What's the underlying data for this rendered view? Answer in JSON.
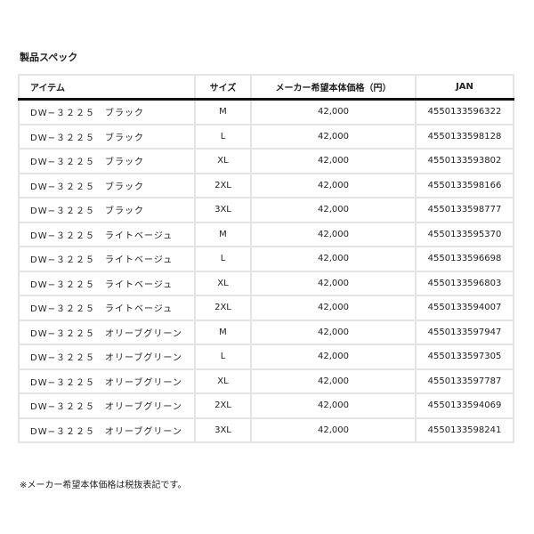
{
  "title": "製品スペック",
  "headers": {
    "item": "アイテム",
    "size": "サイズ",
    "price": "メーカー希望本体価格（円）",
    "jan": "JAN"
  },
  "rows": [
    {
      "item": "DW−３２２５　ブラック",
      "size": "M",
      "price": "42,000",
      "jan": "4550133596322"
    },
    {
      "item": "DW−３２２５　ブラック",
      "size": "L",
      "price": "42,000",
      "jan": "4550133598128"
    },
    {
      "item": "DW−３２２５　ブラック",
      "size": "XL",
      "price": "42,000",
      "jan": "4550133593802"
    },
    {
      "item": "DW−３２２５　ブラック",
      "size": "2XL",
      "price": "42,000",
      "jan": "4550133598166"
    },
    {
      "item": "DW−３２２５　ブラック",
      "size": "3XL",
      "price": "42,000",
      "jan": "4550133598777"
    },
    {
      "item": "DW−３２２５　ライトベージュ",
      "size": "M",
      "price": "42,000",
      "jan": "4550133595370"
    },
    {
      "item": "DW−３２２５　ライトベージュ",
      "size": "L",
      "price": "42,000",
      "jan": "4550133596698"
    },
    {
      "item": "DW−３２２５　ライトベージュ",
      "size": "XL",
      "price": "42,000",
      "jan": "4550133596803"
    },
    {
      "item": "DW−３２２５　ライトベージュ",
      "size": "2XL",
      "price": "42,000",
      "jan": "4550133594007"
    },
    {
      "item": "DW−３２２５　オリーブグリーン",
      "size": "M",
      "price": "42,000",
      "jan": "4550133597947"
    },
    {
      "item": "DW−３２２５　オリーブグリーン",
      "size": "L",
      "price": "42,000",
      "jan": "4550133597305"
    },
    {
      "item": "DW−３２２５　オリーブグリーン",
      "size": "XL",
      "price": "42,000",
      "jan": "4550133597787"
    },
    {
      "item": "DW−３２２５　オリーブグリーン",
      "size": "2XL",
      "price": "42,000",
      "jan": "4550133594069"
    },
    {
      "item": "DW−３２２５　オリーブグリーン",
      "size": "3XL",
      "price": "42,000",
      "jan": "4550133598241"
    }
  ],
  "note": "※メーカー希望本体価格は税抜表記です。"
}
